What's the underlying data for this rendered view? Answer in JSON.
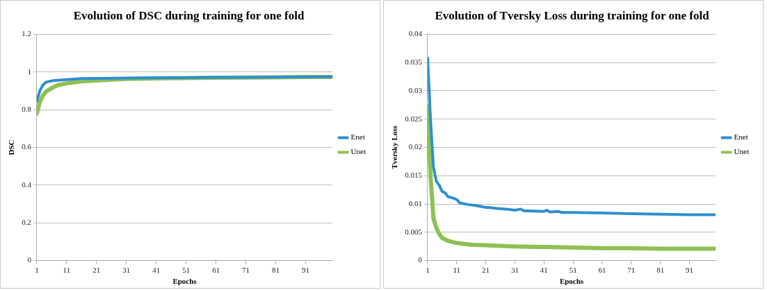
{
  "chart_data": [
    {
      "type": "line",
      "title": "Evolution of DSC during training for one fold",
      "xlabel": "Epochs",
      "ylabel": "DSC",
      "xlim": [
        1,
        100
      ],
      "xticks": [
        1,
        11,
        21,
        31,
        41,
        51,
        61,
        71,
        81,
        91
      ],
      "ylim": [
        0,
        1.2
      ],
      "yticks": [
        0,
        0.2,
        0.4,
        0.6,
        0.8,
        1,
        1.2
      ],
      "grid": "y",
      "legend": "right",
      "marker": "none",
      "line_style": "solid",
      "series": [
        {
          "name": "Enet",
          "color": "#2e8fcf",
          "x": [
            1,
            2,
            3,
            4,
            5,
            7,
            11,
            16,
            21,
            31,
            41,
            51,
            61,
            71,
            81,
            91,
            100
          ],
          "values": [
            0.845,
            0.9,
            0.93,
            0.945,
            0.95,
            0.955,
            0.96,
            0.965,
            0.966,
            0.968,
            0.97,
            0.97,
            0.972,
            0.972,
            0.973,
            0.974,
            0.975
          ]
        },
        {
          "name": "Unet",
          "color": "#8dc153",
          "x": [
            1,
            2,
            3,
            4,
            6,
            8,
            11,
            16,
            21,
            26,
            31,
            41,
            51,
            61,
            71,
            81,
            91,
            100
          ],
          "values": [
            0.78,
            0.84,
            0.875,
            0.895,
            0.915,
            0.93,
            0.94,
            0.95,
            0.955,
            0.96,
            0.963,
            0.966,
            0.968,
            0.97,
            0.971,
            0.972,
            0.973,
            0.973
          ]
        }
      ]
    },
    {
      "type": "line",
      "title": "Evolution of Tversky Loss during training for one fold",
      "xlabel": "Epochs",
      "ylabel": "Tversky Loss",
      "xlim": [
        1,
        100
      ],
      "xticks": [
        1,
        11,
        21,
        31,
        41,
        51,
        61,
        71,
        81,
        91
      ],
      "ylim": [
        0,
        0.04
      ],
      "yticks": [
        0,
        0.005,
        0.01,
        0.015,
        0.02,
        0.025,
        0.03,
        0.035,
        0.04
      ],
      "grid": "y",
      "legend": "right",
      "marker": "none",
      "line_style": "solid",
      "series": [
        {
          "name": "Enet",
          "color": "#2e8fcf",
          "x": [
            1,
            2,
            3,
            4,
            5,
            6,
            7,
            8,
            10,
            11,
            12,
            15,
            18,
            21,
            22,
            25,
            28,
            31,
            33,
            34,
            41,
            42,
            43,
            46,
            47,
            51,
            61,
            71,
            81,
            91,
            100
          ],
          "values": [
            0.0358,
            0.025,
            0.0165,
            0.014,
            0.0133,
            0.0122,
            0.012,
            0.0113,
            0.011,
            0.0108,
            0.0102,
            0.0099,
            0.0097,
            0.0094,
            0.0094,
            0.0092,
            0.0091,
            0.0089,
            0.0091,
            0.0088,
            0.0087,
            0.0089,
            0.0086,
            0.0087,
            0.0085,
            0.0085,
            0.0084,
            0.0083,
            0.0082,
            0.0081,
            0.0081
          ]
        },
        {
          "name": "Unet",
          "color": "#8dc153",
          "x": [
            1,
            2,
            3,
            4,
            5,
            6,
            8,
            11,
            16,
            21,
            31,
            41,
            51,
            61,
            71,
            81,
            91,
            100
          ],
          "values": [
            0.0273,
            0.015,
            0.0075,
            0.0058,
            0.0047,
            0.004,
            0.0035,
            0.0031,
            0.0028,
            0.0027,
            0.0025,
            0.0024,
            0.0023,
            0.0022,
            0.0022,
            0.0021,
            0.0021,
            0.0021
          ]
        }
      ]
    }
  ]
}
